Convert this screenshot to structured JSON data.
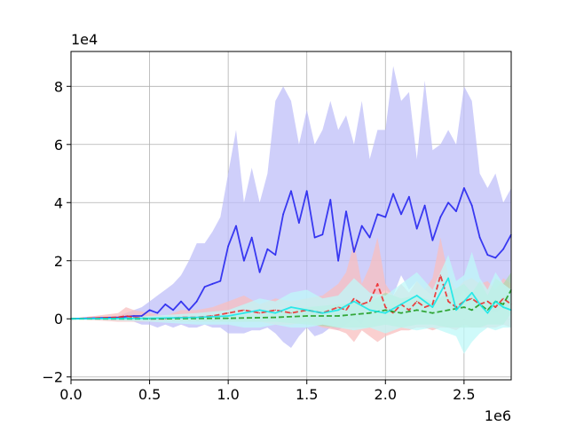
{
  "chart_data": {
    "type": "line",
    "title": "",
    "xlabel": "",
    "ylabel": "",
    "x_offset_text": "1e6",
    "y_offset_text": "1e4",
    "xlim": [
      0.0,
      2.8
    ],
    "ylim": [
      -2.1,
      9.2
    ],
    "grid": true,
    "x_ticks": [
      {
        "value": 0.0,
        "label": "0.0"
      },
      {
        "value": 0.5,
        "label": "0.5"
      },
      {
        "value": 1.0,
        "label": "1.0"
      },
      {
        "value": 1.5,
        "label": "1.5"
      },
      {
        "value": 2.0,
        "label": "2.0"
      },
      {
        "value": 2.5,
        "label": "2.5"
      }
    ],
    "y_ticks": [
      {
        "value": -2,
        "label": "−2"
      },
      {
        "value": 0,
        "label": "0"
      },
      {
        "value": 2,
        "label": "2"
      },
      {
        "value": 4,
        "label": "4"
      },
      {
        "value": 6,
        "label": "6"
      },
      {
        "value": 8,
        "label": "8"
      }
    ],
    "series": [
      {
        "color": "#1f1fee",
        "band_color": "#bfbff8",
        "dash": "solid",
        "x": [
          0.0,
          0.3,
          0.4,
          0.45,
          0.5,
          0.55,
          0.6,
          0.65,
          0.7,
          0.75,
          0.8,
          0.85,
          0.9,
          0.95,
          1.0,
          1.05,
          1.1,
          1.15,
          1.2,
          1.25,
          1.3,
          1.35,
          1.4,
          1.45,
          1.5,
          1.55,
          1.6,
          1.65,
          1.7,
          1.75,
          1.8,
          1.85,
          1.9,
          1.95,
          2.0,
          2.05,
          2.1,
          2.15,
          2.2,
          2.25,
          2.3,
          2.35,
          2.4,
          2.45,
          2.5,
          2.55,
          2.6,
          2.65,
          2.7,
          2.75,
          2.8
        ],
        "values": [
          0.0,
          0.05,
          0.1,
          0.1,
          0.3,
          0.2,
          0.5,
          0.3,
          0.6,
          0.3,
          0.6,
          1.1,
          1.2,
          1.3,
          2.5,
          3.2,
          2.0,
          2.8,
          1.6,
          2.4,
          2.2,
          3.6,
          4.4,
          3.3,
          4.4,
          2.8,
          2.9,
          4.1,
          2.0,
          3.7,
          2.3,
          3.2,
          2.8,
          3.6,
          3.5,
          4.3,
          3.6,
          4.2,
          3.1,
          3.9,
          2.7,
          3.5,
          4.0,
          3.7,
          4.5,
          3.9,
          2.8,
          2.2,
          2.1,
          2.4,
          2.9
        ],
        "upper": [
          0.0,
          0.1,
          0.3,
          0.4,
          0.6,
          0.8,
          1.0,
          1.2,
          1.5,
          2.0,
          2.6,
          2.6,
          3.0,
          3.5,
          5.0,
          6.5,
          4.0,
          5.2,
          4.0,
          5.0,
          7.5,
          8.0,
          7.5,
          6.0,
          7.2,
          6.0,
          6.5,
          7.5,
          6.5,
          7.0,
          6.0,
          7.5,
          5.5,
          6.5,
          6.5,
          8.7,
          7.5,
          7.8,
          5.5,
          8.2,
          5.8,
          6.0,
          6.5,
          6.0,
          8.0,
          7.5,
          5.0,
          4.5,
          5.0,
          4.0,
          4.5
        ],
        "lower": [
          0.0,
          0.0,
          -0.1,
          -0.2,
          -0.2,
          -0.3,
          -0.2,
          -0.3,
          -0.2,
          -0.3,
          -0.3,
          -0.2,
          -0.3,
          -0.3,
          -0.5,
          -0.5,
          -0.5,
          -0.4,
          -0.4,
          -0.3,
          -0.5,
          -0.8,
          -1.0,
          -0.6,
          -0.3,
          -0.6,
          -0.5,
          -0.3,
          -0.4,
          -0.2,
          0.0,
          -0.2,
          0.5,
          0.8,
          1.0,
          0.8,
          1.5,
          1.0,
          1.3,
          1.0,
          0.8,
          1.0,
          1.2,
          0.6,
          1.0,
          0.2,
          0.2,
          0.2,
          0.2,
          0.4,
          0.6
        ]
      },
      {
        "color": "#ee2626",
        "band_color": "#f8bfbf",
        "dash": "dashed",
        "x": [
          0.0,
          0.3,
          0.35,
          0.4,
          0.5,
          0.6,
          0.7,
          0.8,
          0.9,
          1.0,
          1.1,
          1.2,
          1.3,
          1.4,
          1.5,
          1.6,
          1.7,
          1.75,
          1.8,
          1.85,
          1.9,
          1.95,
          2.0,
          2.05,
          2.1,
          2.15,
          2.2,
          2.25,
          2.3,
          2.35,
          2.4,
          2.45,
          2.5,
          2.55,
          2.6,
          2.65,
          2.7,
          2.75,
          2.8
        ],
        "values": [
          0.0,
          0.05,
          0.1,
          0.05,
          0.0,
          0.0,
          0.05,
          0.05,
          0.1,
          0.2,
          0.3,
          0.2,
          0.3,
          0.2,
          0.3,
          0.2,
          0.4,
          0.3,
          0.7,
          0.5,
          0.6,
          1.2,
          0.4,
          0.2,
          0.5,
          0.3,
          0.6,
          0.4,
          0.5,
          1.5,
          0.6,
          0.4,
          0.6,
          0.7,
          0.5,
          0.6,
          0.4,
          0.7,
          0.5
        ],
        "upper": [
          0.0,
          0.2,
          0.4,
          0.3,
          0.2,
          0.1,
          0.3,
          0.3,
          0.4,
          0.6,
          0.8,
          0.5,
          0.7,
          0.6,
          0.7,
          0.8,
          1.2,
          1.6,
          2.6,
          1.2,
          1.8,
          2.8,
          1.2,
          0.8,
          1.2,
          0.9,
          1.3,
          1.0,
          1.4,
          2.8,
          1.5,
          1.0,
          1.3,
          1.4,
          1.2,
          1.3,
          1.0,
          1.4,
          1.2
        ],
        "lower": [
          0.0,
          -0.1,
          -0.1,
          -0.1,
          -0.1,
          -0.1,
          -0.1,
          -0.1,
          -0.1,
          -0.1,
          -0.1,
          -0.1,
          -0.2,
          -0.2,
          -0.1,
          -0.3,
          -0.4,
          -0.5,
          -0.8,
          -0.4,
          -0.6,
          -0.8,
          -0.6,
          -0.5,
          -0.4,
          -0.4,
          -0.3,
          -0.3,
          -0.4,
          -0.3,
          -0.3,
          -0.4,
          -0.2,
          -0.3,
          -0.3,
          -0.3,
          -0.3,
          -0.2,
          -0.3
        ]
      },
      {
        "color": "#1a9a1a",
        "band_color": "#b0d8b0",
        "dash": "dashed",
        "x": [
          0.0,
          0.5,
          1.0,
          1.3,
          1.5,
          1.7,
          1.9,
          2.0,
          2.1,
          2.2,
          2.3,
          2.4,
          2.5,
          2.55,
          2.6,
          2.65,
          2.7,
          2.75,
          2.8
        ],
        "values": [
          0.0,
          0.0,
          0.02,
          0.05,
          0.1,
          0.1,
          0.2,
          0.3,
          0.2,
          0.3,
          0.2,
          0.3,
          0.4,
          0.3,
          0.5,
          0.3,
          0.6,
          0.5,
          1.0
        ],
        "upper": [
          0.0,
          0.05,
          0.1,
          0.2,
          0.4,
          0.5,
          0.6,
          0.9,
          0.7,
          0.8,
          0.6,
          0.9,
          1.2,
          0.9,
          1.3,
          0.8,
          1.4,
          1.2,
          1.6
        ],
        "lower": [
          0.0,
          -0.05,
          -0.1,
          -0.1,
          -0.2,
          -0.3,
          -0.3,
          -0.2,
          -0.3,
          -0.2,
          -0.2,
          -0.3,
          -0.3,
          -0.3,
          -0.3,
          -0.2,
          -0.2,
          -0.2,
          0.2
        ]
      },
      {
        "color": "#10e8e8",
        "band_color": "#bff8f8",
        "dash": "solid",
        "x": [
          0.0,
          0.5,
          0.8,
          1.0,
          1.1,
          1.2,
          1.3,
          1.4,
          1.5,
          1.6,
          1.7,
          1.8,
          1.9,
          2.0,
          2.1,
          2.2,
          2.3,
          2.4,
          2.45,
          2.5,
          2.55,
          2.6,
          2.65,
          2.7,
          2.75,
          2.8
        ],
        "values": [
          0.0,
          0.02,
          0.05,
          0.1,
          0.2,
          0.3,
          0.2,
          0.4,
          0.3,
          0.2,
          0.3,
          0.6,
          0.3,
          0.2,
          0.5,
          0.8,
          0.4,
          1.4,
          0.3,
          0.6,
          0.9,
          0.5,
          0.2,
          0.6,
          0.4,
          0.3
        ],
        "upper": [
          0.0,
          0.1,
          0.2,
          0.3,
          0.5,
          0.7,
          0.6,
          0.9,
          1.0,
          0.7,
          0.8,
          1.4,
          0.9,
          0.8,
          1.2,
          1.6,
          1.0,
          2.2,
          1.3,
          1.5,
          2.3,
          1.4,
          1.0,
          1.6,
          1.2,
          1.0
        ],
        "lower": [
          0.0,
          -0.1,
          -0.2,
          -0.2,
          -0.3,
          -0.3,
          -0.2,
          -0.3,
          -0.3,
          -0.2,
          -0.3,
          -0.4,
          -0.3,
          -0.5,
          -0.3,
          -0.4,
          -0.3,
          -0.5,
          -0.6,
          -1.2,
          -0.8,
          -0.5,
          -0.3,
          -0.4,
          -0.3,
          -0.3
        ]
      }
    ]
  }
}
